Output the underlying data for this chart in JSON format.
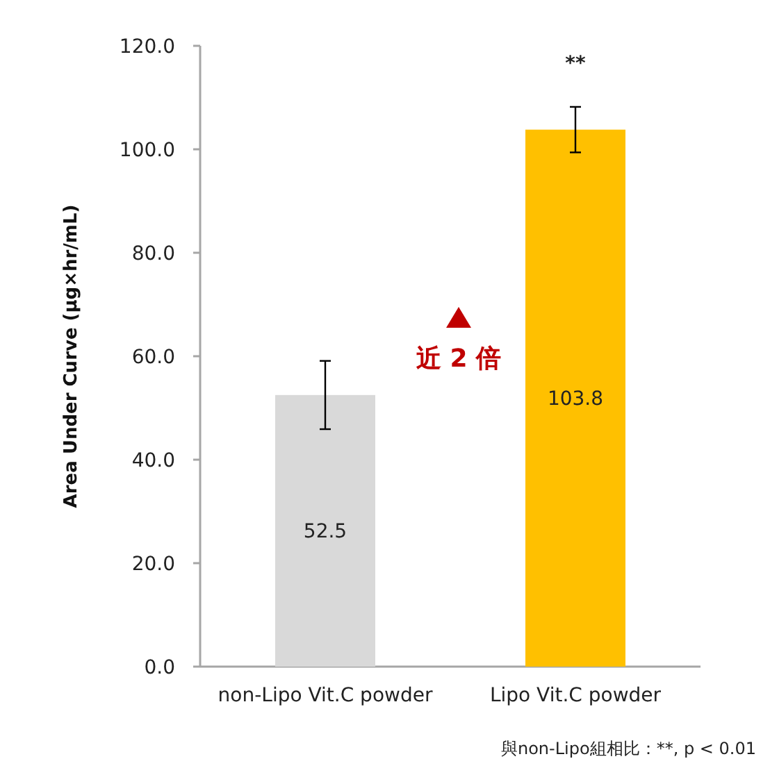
{
  "chart_data": {
    "type": "bar",
    "ylabel": "Area Under Curve (µg×hr/mL)",
    "categories": [
      "non-Lipo Vit.C powder",
      "Lipo Vit.C powder"
    ],
    "values": [
      52.5,
      103.8
    ],
    "colors": [
      "#d9d9d9",
      "#ffc000"
    ],
    "errors": [
      6.6,
      4.4
    ],
    "ylim": [
      0,
      120
    ],
    "yticks": [
      {
        "value": 0,
        "label": "0.0"
      },
      {
        "value": 20,
        "label": "20.0"
      },
      {
        "value": 40,
        "label": "40.0"
      },
      {
        "value": 60,
        "label": "60.0"
      },
      {
        "value": 80,
        "label": "80.0"
      },
      {
        "value": 100,
        "label": "100.0"
      },
      {
        "value": 120,
        "label": "120.0"
      }
    ],
    "data_labels": true,
    "grid": false,
    "annotations": [
      "**",
      "近 2 倍",
      "與non-Lipo組相比：**, p < 0.01"
    ]
  }
}
